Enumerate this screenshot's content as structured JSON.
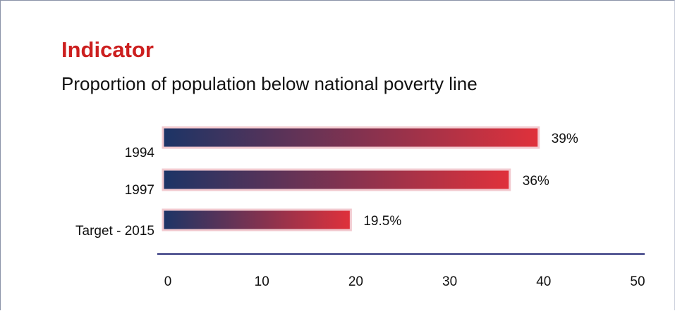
{
  "title": "Indicator",
  "subtitle": "Proportion of population below national poverty line",
  "colors": {
    "title": "#cc1f1f",
    "bar_start": "#1c3466",
    "bar_end": "#e0313b",
    "axis": "#2b2f7a"
  },
  "chart_data": {
    "type": "bar",
    "orientation": "horizontal",
    "categories": [
      "1994",
      "1997",
      "Target - 2015"
    ],
    "values": [
      39,
      36,
      19.5
    ],
    "value_labels": [
      "39%",
      "36%",
      "19.5%"
    ],
    "xlim": [
      0,
      50
    ],
    "xticks": [
      0,
      10,
      20,
      30,
      40,
      50
    ],
    "grid": false,
    "legend": "none"
  }
}
